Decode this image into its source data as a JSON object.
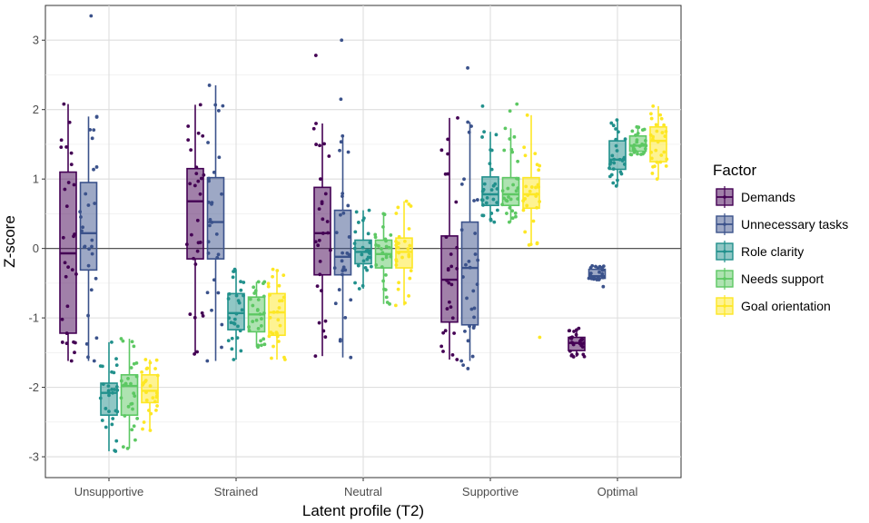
{
  "chart_data": {
    "type": "boxplot",
    "xlabel": "Latent profile (T2)",
    "ylabel": "Z-score",
    "ylim": [
      -3.3,
      3.5
    ],
    "yticks": [
      -3,
      -2,
      -1,
      0,
      1,
      2,
      3
    ],
    "reference_line_y": 0,
    "grid": true,
    "legend_title": "Factor",
    "legend_position": "right",
    "categories": [
      "Unsupportive",
      "Strained",
      "Neutral",
      "Supportive",
      "Optimal"
    ],
    "series": [
      {
        "name": "Demands",
        "color": "#440154",
        "boxes": [
          {
            "min": -1.62,
            "q1": -1.22,
            "median": -0.07,
            "q3": 1.1,
            "max": 2.08,
            "outliers": []
          },
          {
            "min": -1.52,
            "q1": -0.15,
            "median": 0.68,
            "q3": 1.15,
            "max": 2.07,
            "outliers": []
          },
          {
            "min": -1.55,
            "q1": -0.38,
            "median": 0.22,
            "q3": 0.88,
            "max": 1.8,
            "outliers": [
              2.78
            ]
          },
          {
            "min": -1.6,
            "q1": -1.06,
            "median": -0.45,
            "q3": 0.18,
            "max": 1.88,
            "outliers": []
          },
          {
            "min": -1.56,
            "q1": -1.47,
            "median": -1.36,
            "q3": -1.28,
            "max": -1.15,
            "outliers": []
          }
        ]
      },
      {
        "name": "Unnecessary tasks",
        "color": "#3b528b",
        "boxes": [
          {
            "min": -1.62,
            "q1": -0.31,
            "median": 0.22,
            "q3": 0.95,
            "max": 1.9,
            "outliers": [
              3.35
            ]
          },
          {
            "min": -1.62,
            "q1": -0.15,
            "median": 0.38,
            "q3": 1.02,
            "max": 2.35,
            "outliers": []
          },
          {
            "min": -1.57,
            "q1": -0.38,
            "median": -0.12,
            "q3": 0.55,
            "max": 1.62,
            "outliers": [
              2.15,
              3.0
            ]
          },
          {
            "min": -1.62,
            "q1": -1.1,
            "median": -0.28,
            "q3": 0.38,
            "max": 1.82,
            "outliers": [
              -1.73,
              -1.68,
              2.6
            ]
          },
          {
            "min": -0.45,
            "q1": -0.43,
            "median": -0.4,
            "q3": -0.3,
            "max": -0.25,
            "outliers": [
              -0.55
            ]
          }
        ]
      },
      {
        "name": "Role clarity",
        "color": "#21908c",
        "boxes": [
          {
            "min": -2.92,
            "q1": -2.4,
            "median": -2.08,
            "q3": -1.94,
            "max": -1.35,
            "outliers": []
          },
          {
            "min": -1.6,
            "q1": -1.17,
            "median": -0.93,
            "q3": -0.65,
            "max": -0.3,
            "outliers": []
          },
          {
            "min": -0.58,
            "q1": -0.22,
            "median": -0.05,
            "q3": 0.12,
            "max": 0.55,
            "outliers": []
          },
          {
            "min": 0.38,
            "q1": 0.62,
            "median": 0.78,
            "q3": 1.03,
            "max": 1.68,
            "outliers": [
              2.05
            ]
          },
          {
            "min": 0.9,
            "q1": 1.14,
            "median": 1.28,
            "q3": 1.55,
            "max": 1.85,
            "outliers": []
          }
        ]
      },
      {
        "name": "Needs support",
        "color": "#5dc863",
        "boxes": [
          {
            "min": -2.88,
            "q1": -2.4,
            "median": -1.98,
            "q3": -1.82,
            "max": -1.3,
            "outliers": []
          },
          {
            "min": -1.42,
            "q1": -1.2,
            "median": -0.95,
            "q3": -0.7,
            "max": -0.48,
            "outliers": []
          },
          {
            "min": -0.8,
            "q1": -0.28,
            "median": -0.08,
            "q3": 0.12,
            "max": 0.5,
            "outliers": []
          },
          {
            "min": 0.38,
            "q1": 0.62,
            "median": 0.78,
            "q3": 1.02,
            "max": 1.73,
            "outliers": [
              2.08,
              1.98
            ]
          },
          {
            "min": 1.35,
            "q1": 1.4,
            "median": 1.48,
            "q3": 1.62,
            "max": 1.75,
            "outliers": []
          }
        ]
      },
      {
        "name": "Goal orientation",
        "color": "#fde725",
        "boxes": [
          {
            "min": -2.62,
            "q1": -2.22,
            "median": -2.05,
            "q3": -1.82,
            "max": -1.6,
            "outliers": []
          },
          {
            "min": -1.6,
            "q1": -1.25,
            "median": -0.92,
            "q3": -0.65,
            "max": -0.3,
            "outliers": []
          },
          {
            "min": -0.82,
            "q1": -0.28,
            "median": -0.05,
            "q3": 0.15,
            "max": 0.68,
            "outliers": []
          },
          {
            "min": 0.05,
            "q1": 0.58,
            "median": 0.78,
            "q3": 1.02,
            "max": 1.92,
            "outliers": [
              -1.28
            ]
          },
          {
            "min": 1.0,
            "q1": 1.25,
            "median": 1.55,
            "q3": 1.75,
            "max": 2.05,
            "outliers": []
          }
        ]
      }
    ]
  }
}
